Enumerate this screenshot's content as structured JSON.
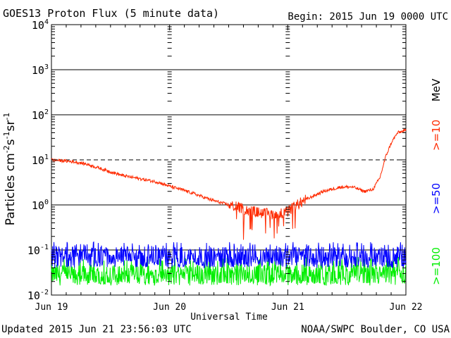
{
  "header": {
    "title": "GOES13 Proton Flux (5 minute data)",
    "begin": "Begin: 2015 Jun 19 0000 UTC"
  },
  "footer": {
    "updated": "Updated 2015 Jun 21 23:56:03 UTC",
    "source": "NOAA/SWPC Boulder, CO USA"
  },
  "chart_data": {
    "type": "line",
    "title": "GOES13 Proton Flux (5 minute data)",
    "xlabel": "Universal Time",
    "ylabel": "Particles cm-2s-1sr-1",
    "yscale": "log",
    "ylim": [
      0.01,
      10000
    ],
    "xlim_days": [
      0,
      3
    ],
    "x_tick_labels": [
      "Jun 19",
      "Jun 20",
      "Jun 21",
      "Jun 22"
    ],
    "y_ticks": [
      {
        "value": 0.01,
        "base": "10",
        "exp": "-2"
      },
      {
        "value": 0.1,
        "base": "10",
        "exp": "-1"
      },
      {
        "value": 1,
        "base": "10",
        "exp": "0"
      },
      {
        "value": 10,
        "base": "10",
        "exp": "1"
      },
      {
        "value": 100,
        "base": "10",
        "exp": "2"
      },
      {
        "value": 1000,
        "base": "10",
        "exp": "3"
      },
      {
        "value": 10000,
        "base": "10",
        "exp": "4"
      }
    ],
    "threshold_line": 10,
    "energy_unit": "MeV",
    "series": [
      {
        "name": ">=10",
        "color": "#ff2a00",
        "points": [
          [
            0,
            10
          ],
          [
            0.1,
            9.5
          ],
          [
            0.2,
            9
          ],
          [
            0.3,
            8
          ],
          [
            0.45,
            6
          ],
          [
            0.6,
            4.5
          ],
          [
            0.75,
            3.8
          ],
          [
            0.9,
            3.2
          ],
          [
            1.0,
            2.6
          ],
          [
            1.1,
            2.2
          ],
          [
            1.2,
            1.8
          ],
          [
            1.35,
            1.3
          ],
          [
            1.5,
            1.0
          ],
          [
            1.6,
            0.85
          ],
          [
            1.7,
            0.72
          ],
          [
            1.8,
            0.65
          ],
          [
            1.9,
            0.62
          ],
          [
            2.0,
            0.7
          ],
          [
            2.05,
            0.9
          ],
          [
            2.15,
            1.3
          ],
          [
            2.3,
            2.0
          ],
          [
            2.45,
            2.5
          ],
          [
            2.55,
            2.5
          ],
          [
            2.65,
            2.0
          ],
          [
            2.72,
            2.2
          ],
          [
            2.78,
            4
          ],
          [
            2.83,
            12
          ],
          [
            2.88,
            25
          ],
          [
            2.93,
            40
          ],
          [
            3.0,
            45
          ]
        ]
      },
      {
        "name": ">=50",
        "color": "#0000ff",
        "level": 0.07,
        "range": [
          0.04,
          0.15
        ]
      },
      {
        "name": ">=100",
        "color": "#00ee00",
        "level": 0.028,
        "range": [
          0.018,
          0.07
        ]
      }
    ]
  }
}
